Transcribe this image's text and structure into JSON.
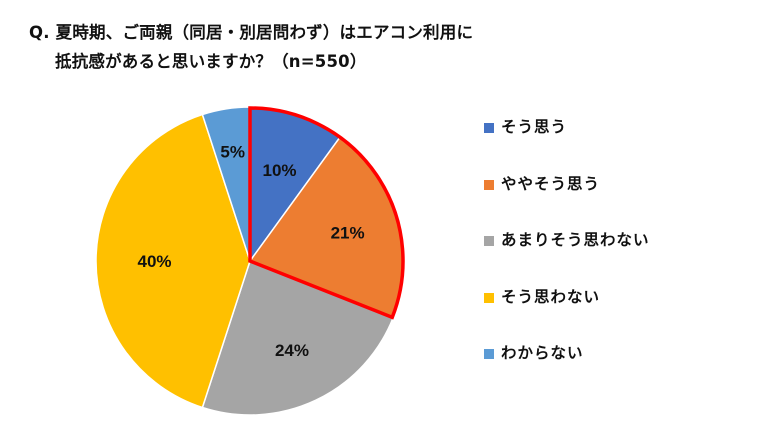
{
  "title": {
    "line1": "Q. 夏時期、ご両親（同居・別居問わず）はエアコン利用に",
    "line2": "抵抗感があると思いますか？（n=550）"
  },
  "chart_data": {
    "type": "pie",
    "title": "Q. 夏時期、ご両親（同居・別居問わず）はエアコン利用に抵抗感があると思いますか？（n=550）",
    "n": 550,
    "categories": [
      "そう思う",
      "ややそう思う",
      "あまりそう思わない",
      "そう思わない",
      "わからない"
    ],
    "values": [
      10,
      21,
      24,
      40,
      5
    ],
    "labels": [
      "10%",
      "21%",
      "24%",
      "40%",
      "5%"
    ],
    "colors": [
      "#4472C4",
      "#ED7D31",
      "#A5A5A5",
      "#FFC000",
      "#5B9BD5"
    ],
    "start_angle_deg": 0,
    "direction": "clockwise",
    "highlight": {
      "slices": [
        "そう思う",
        "ややそう思う"
      ],
      "outline_color": "#FF0000"
    },
    "legend_position": "right"
  },
  "legend": {
    "items": [
      {
        "label": "そう思う",
        "color": "#4472C4"
      },
      {
        "label": "ややそう思う",
        "color": "#ED7D31"
      },
      {
        "label": "あまりそう思わない",
        "color": "#A5A5A5"
      },
      {
        "label": "そう思わない",
        "color": "#FFC000"
      },
      {
        "label": "わからない",
        "color": "#5B9BD5"
      }
    ]
  }
}
